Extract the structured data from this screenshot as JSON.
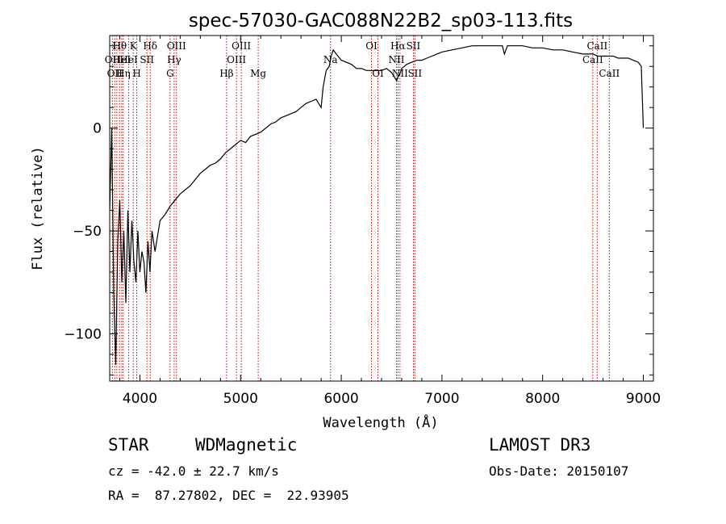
{
  "chart_data": {
    "type": "line",
    "title": "spec-57030-GAC088N22B2_sp03-113.fits",
    "xlabel": "Wavelength (Å)",
    "ylabel": "Flux (relative)",
    "xlim": [
      3700,
      9100
    ],
    "ylim": [
      -123,
      45
    ],
    "xticks": [
      4000,
      5000,
      6000,
      7000,
      8000,
      9000
    ],
    "yticks": [
      0,
      -50,
      -100
    ],
    "series": [
      {
        "name": "flux",
        "x": [
          3700,
          3720,
          3740,
          3760,
          3780,
          3800,
          3820,
          3840,
          3860,
          3880,
          3900,
          3920,
          3940,
          3960,
          3980,
          4000,
          4020,
          4040,
          4060,
          4080,
          4100,
          4120,
          4150,
          4200,
          4250,
          4300,
          4350,
          4400,
          4450,
          4500,
          4550,
          4600,
          4650,
          4700,
          4750,
          4800,
          4850,
          4900,
          4950,
          5000,
          5050,
          5100,
          5150,
          5200,
          5250,
          5300,
          5350,
          5400,
          5450,
          5500,
          5550,
          5600,
          5650,
          5700,
          5750,
          5800,
          5820,
          5850,
          5880,
          5900,
          5920,
          5950,
          6000,
          6050,
          6100,
          6150,
          6200,
          6250,
          6300,
          6350,
          6400,
          6450,
          6500,
          6550,
          6563,
          6580,
          6600,
          6650,
          6700,
          6750,
          6800,
          6850,
          6900,
          6950,
          7000,
          7100,
          7200,
          7300,
          7400,
          7500,
          7600,
          7620,
          7650,
          7700,
          7800,
          7900,
          8000,
          8100,
          8200,
          8300,
          8400,
          8500,
          8550,
          8600,
          8650,
          8700,
          8750,
          8800,
          8850,
          8900,
          8950,
          8980,
          9000
        ],
        "values": [
          -40,
          0,
          -80,
          -115,
          -55,
          -35,
          -75,
          -50,
          -85,
          -40,
          -70,
          -45,
          -65,
          -75,
          -50,
          -70,
          -60,
          -65,
          -80,
          -55,
          -70,
          -50,
          -60,
          -45,
          -42,
          -38,
          -35,
          -32,
          -30,
          -28,
          -25,
          -22,
          -20,
          -18,
          -17,
          -15,
          -12,
          -10,
          -8,
          -6,
          -7,
          -4,
          -3,
          -2,
          0,
          2,
          3,
          5,
          6,
          7,
          8,
          10,
          12,
          13,
          14,
          10,
          20,
          28,
          30,
          35,
          38,
          36,
          33,
          32,
          31,
          29,
          29,
          28,
          28,
          28,
          28,
          29,
          27,
          23,
          25,
          26,
          29,
          31,
          32,
          33,
          33,
          34,
          35,
          36,
          37,
          38,
          39,
          40,
          40,
          40,
          40,
          36,
          40,
          40,
          40,
          39,
          39,
          38,
          38,
          37,
          36,
          36,
          35,
          35,
          35,
          35,
          34,
          34,
          34,
          33,
          32,
          30,
          0
        ]
      }
    ],
    "lines": [
      {
        "wave": 3727,
        "label": "OII",
        "row": 2
      },
      {
        "wave": 3750,
        "label": "OII",
        "row": 3
      },
      {
        "wave": 3771,
        "label": "H",
        "row": 1
      },
      {
        "wave": 3798,
        "label": "Hθ",
        "row": 1
      },
      {
        "wave": 3820,
        "label": "HeI",
        "row": 2
      },
      {
        "wave": 3835,
        "label": "Hη",
        "row": 3
      },
      {
        "wave": 3889,
        "label": "HeI",
        "row": 2
      },
      {
        "wave": 3934,
        "label": "K",
        "row": 1
      },
      {
        "wave": 3969,
        "label": "H",
        "row": 3
      },
      {
        "wave": 4070,
        "label": "SII",
        "row": 2
      },
      {
        "wave": 4102,
        "label": "Hδ",
        "row": 1
      },
      {
        "wave": 4300,
        "label": "G",
        "row": 3
      },
      {
        "wave": 4340,
        "label": "Hγ",
        "row": 2
      },
      {
        "wave": 4363,
        "label": "OIII",
        "row": 1
      },
      {
        "wave": 4861,
        "label": "Hβ",
        "row": 3
      },
      {
        "wave": 4959,
        "label": "OIII",
        "row": 2
      },
      {
        "wave": 5007,
        "label": "OIII",
        "row": 1
      },
      {
        "wave": 5175,
        "label": "Mg",
        "row": 3
      },
      {
        "wave": 5893,
        "label": "Na",
        "row": 2
      },
      {
        "wave": 6300,
        "label": "OI",
        "row": 1
      },
      {
        "wave": 6364,
        "label": "OI",
        "row": 3
      },
      {
        "wave": 6548,
        "label": "NII",
        "row": 2
      },
      {
        "wave": 6563,
        "label": "Hα",
        "row": 1
      },
      {
        "wave": 6583,
        "label": "NII",
        "row": 3
      },
      {
        "wave": 6716,
        "label": "SII",
        "row": 1
      },
      {
        "wave": 6731,
        "label": "SII",
        "row": 3
      },
      {
        "wave": 8498,
        "label": "CaII",
        "row": 2
      },
      {
        "wave": 8542,
        "label": "CaII",
        "row": 1
      },
      {
        "wave": 8662,
        "label": "CaII",
        "row": 3
      }
    ]
  },
  "info": {
    "class": "STAR",
    "subclass": "WDMagnetic",
    "survey": "LAMOST DR3",
    "cz": "cz = -42.0 ± 22.7 km/s",
    "obs_date": "Obs-Date: 20150107",
    "coords": "RA =  87.27802, DEC =  22.93905"
  },
  "colors": {
    "spectrum": "#000000",
    "line_marker": "#cc0000",
    "background": "#ffffff"
  }
}
